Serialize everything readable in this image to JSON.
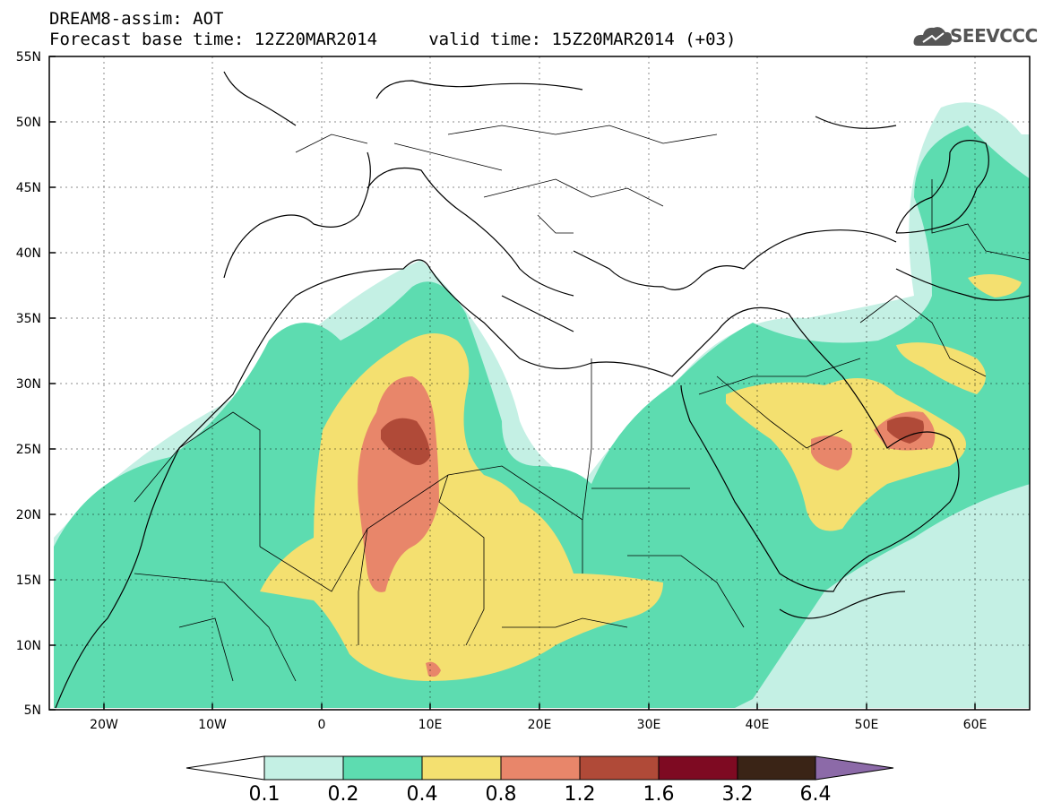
{
  "header": {
    "line1": "DREAM8-assim: AOT",
    "line2": "Forecast base time: 12Z20MAR2014     valid time: 15Z20MAR2014 (+03)",
    "logo_text": "SEEVCCC",
    "logo_icon": "cloud-icon"
  },
  "map": {
    "projection": "lat-lon",
    "lon_range": [
      -25,
      65
    ],
    "lat_range": [
      5,
      55
    ],
    "grid": true,
    "x_ticks": [
      "20W",
      "10W",
      "0",
      "10E",
      "20E",
      "30E",
      "40E",
      "50E",
      "60E"
    ],
    "y_ticks": [
      "5N",
      "10N",
      "15N",
      "20N",
      "25N",
      "30N",
      "35N",
      "40N",
      "45N",
      "50N",
      "55N"
    ]
  },
  "colorbar": {
    "levels": [
      "0.1",
      "0.2",
      "0.4",
      "0.8",
      "1.2",
      "1.6",
      "3.2",
      "6.4"
    ],
    "colors": [
      "#ffffff",
      "#c4f0e4",
      "#5ddcb0",
      "#f4e070",
      "#e8866a",
      "#b04a38",
      "#7e0a22",
      "#3a2416",
      "#8c6aa8"
    ]
  }
}
